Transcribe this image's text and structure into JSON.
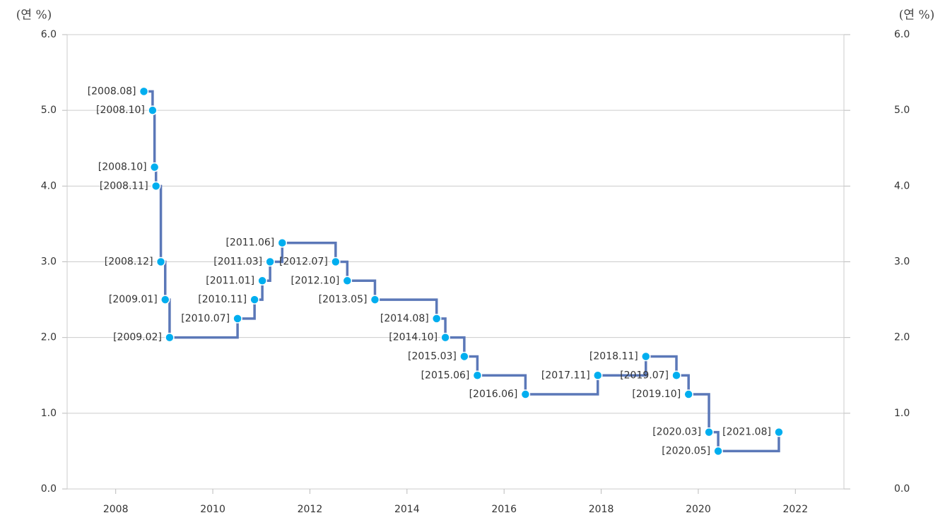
{
  "chart_data": {
    "type": "step",
    "y_label": "(연 %)",
    "y2_label": "(연 %)",
    "x": [
      2008.58,
      2008.76,
      2008.8,
      2008.83,
      2008.93,
      2009.02,
      2009.11,
      2010.51,
      2010.86,
      2011.02,
      2011.18,
      2011.43,
      2012.53,
      2012.77,
      2013.34,
      2014.61,
      2014.79,
      2015.18,
      2015.45,
      2016.44,
      2017.93,
      2018.92,
      2019.55,
      2019.8,
      2020.22,
      2020.41,
      2021.66
    ],
    "values": [
      5.25,
      5.0,
      4.25,
      4.0,
      3.0,
      2.5,
      2.0,
      2.25,
      2.5,
      2.75,
      3.0,
      3.25,
      3.0,
      2.75,
      2.5,
      2.25,
      2.0,
      1.75,
      1.5,
      1.25,
      1.5,
      1.75,
      1.5,
      1.25,
      0.75,
      0.5,
      0.75
    ],
    "point_labels": [
      "[2008.08]",
      "[2008.10]",
      "[2008.10]",
      "[2008.11]",
      "[2008.12]",
      "[2009.01]",
      "[2009.02]",
      "[2010.07]",
      "[2010.11]",
      "[2011.01]",
      "[2011.03]",
      "[2011.06]",
      "[2012.07]",
      "[2012.10]",
      "[2013.05]",
      "[2014.08]",
      "[2014.10]",
      "[2015.03]",
      "[2015.06]",
      "[2016.06]",
      "[2017.11]",
      "[2018.11]",
      "[2019.07]",
      "[2019.10]",
      "[2020.03]",
      "[2020.05]",
      "[2021.08]"
    ],
    "color": "#5b78b8",
    "marker_color": "#00aeef",
    "xlim": [
      2007,
      2023
    ],
    "xticks": [
      2008,
      2010,
      2012,
      2014,
      2016,
      2018,
      2020,
      2022
    ],
    "ylim": [
      0,
      6
    ],
    "yticks": [
      {
        "value": 0,
        "label": "0.0"
      },
      {
        "value": 1,
        "label": "1.0"
      },
      {
        "value": 2,
        "label": "2.0"
      },
      {
        "value": 3,
        "label": "3.0"
      },
      {
        "value": 4,
        "label": "4.0"
      },
      {
        "value": 5,
        "label": "5.0"
      },
      {
        "value": 6,
        "label": "6.0"
      }
    ],
    "y2lim": [
      0,
      6
    ],
    "y2ticks": [
      {
        "value": 0,
        "label": "0.0"
      },
      {
        "value": 1,
        "label": "1.0"
      },
      {
        "value": 2,
        "label": "2.0"
      },
      {
        "value": 3,
        "label": "3.0"
      },
      {
        "value": 4,
        "label": "4.0"
      },
      {
        "value": 5,
        "label": "5.0"
      },
      {
        "value": 6,
        "label": "6.0"
      }
    ],
    "grid": true
  }
}
